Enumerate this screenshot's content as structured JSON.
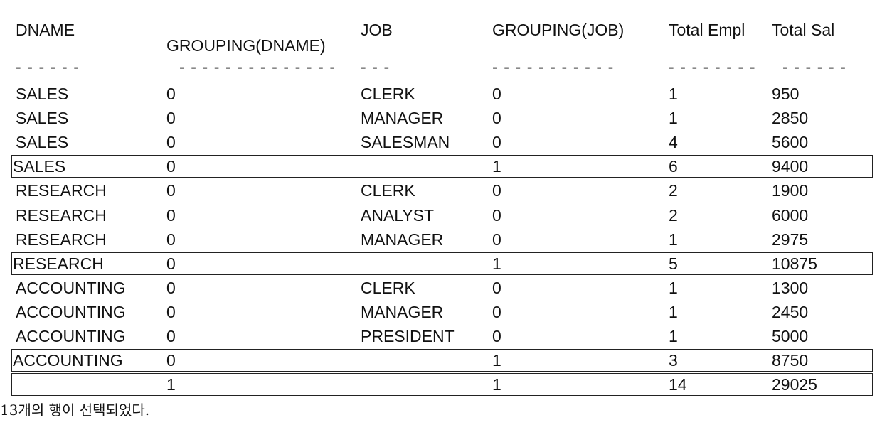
{
  "table": {
    "columns": [
      "DNAME",
      "GROUPING(DNAME)",
      "JOB",
      "GROUPING(JOB)",
      "Total Empl",
      "Total Sal"
    ],
    "separators": [
      "------",
      "--------------",
      "---",
      "-----------",
      "--------",
      "------"
    ],
    "rows": [
      [
        "SALES",
        "0",
        "CLERK",
        "0",
        "1",
        "950"
      ],
      [
        "SALES",
        "0",
        "MANAGER",
        "0",
        "1",
        "2850"
      ],
      [
        "SALES",
        "0",
        "SALESMAN",
        "0",
        "4",
        "5600"
      ],
      [
        "SALES",
        "0",
        null,
        "1",
        "6",
        "9400"
      ],
      [
        "RESEARCH",
        "0",
        "CLERK",
        "0",
        "2",
        "1900"
      ],
      [
        "RESEARCH",
        "0",
        "ANALYST",
        "0",
        "2",
        "6000"
      ],
      [
        "RESEARCH",
        "0",
        "MANAGER",
        "0",
        "1",
        "2975"
      ],
      [
        "RESEARCH",
        "0",
        null,
        "1",
        "5",
        "10875"
      ],
      [
        "ACCOUNTING",
        "0",
        "CLERK",
        "0",
        "1",
        "1300"
      ],
      [
        "ACCOUNTING",
        "0",
        "MANAGER",
        "0",
        "1",
        "2450"
      ],
      [
        "ACCOUNTING",
        "0",
        "PRESIDENT",
        "0",
        "1",
        "5000"
      ],
      [
        "ACCOUNTING",
        "0",
        null,
        "1",
        "3",
        "8750"
      ],
      [
        null,
        "1",
        null,
        "1",
        "14",
        "29025"
      ]
    ]
  },
  "footer": "13개의 행이 선택되었다."
}
